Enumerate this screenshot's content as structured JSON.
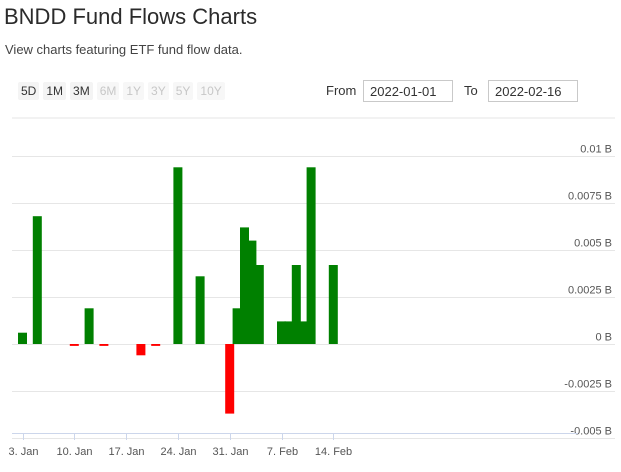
{
  "page": {
    "title": "BNDD Fund Flows Charts",
    "subtitle": "View charts featuring ETF fund flow data."
  },
  "range_selector": {
    "buttons": [
      {
        "label": "5D",
        "enabled": true
      },
      {
        "label": "1M",
        "enabled": true
      },
      {
        "label": "3M",
        "enabled": true
      },
      {
        "label": "6M",
        "enabled": false
      },
      {
        "label": "1Y",
        "enabled": false
      },
      {
        "label": "3Y",
        "enabled": false
      },
      {
        "label": "5Y",
        "enabled": false
      },
      {
        "label": "10Y",
        "enabled": false
      }
    ],
    "from_label": "From",
    "from_value": "2022-01-01",
    "to_label": "To",
    "to_value": "2022-02-16"
  },
  "colors": {
    "positive": "#008000",
    "negative": "#ff0000",
    "grid": "#e6e6e6"
  },
  "chart_data": {
    "type": "bar",
    "title": "",
    "xlabel": "",
    "ylabel": "",
    "ylim": [
      -0.005,
      0.01
    ],
    "grid": true,
    "y_ticks": [
      {
        "value": 0.01,
        "label": "0.01 B"
      },
      {
        "value": 0.0075,
        "label": "0.0075 B"
      },
      {
        "value": 0.005,
        "label": "0.005 B"
      },
      {
        "value": 0.0025,
        "label": "0.0025 B"
      },
      {
        "value": 0,
        "label": "0 B"
      },
      {
        "value": -0.0025,
        "label": "-0.0025 B"
      },
      {
        "value": -0.005,
        "label": "-0.005 B"
      }
    ],
    "x_ticks": [
      "3. Jan",
      "10. Jan",
      "17. Jan",
      "24. Jan",
      "31. Jan",
      "7. Feb",
      "14. Feb"
    ],
    "dates": [
      "2022-01-03",
      "2022-01-05",
      "2022-01-07",
      "2022-01-10",
      "2022-01-12",
      "2022-01-14",
      "2022-01-17",
      "2022-01-19",
      "2022-01-21",
      "2022-01-24",
      "2022-01-25",
      "2022-01-27",
      "2022-01-31",
      "2022-02-01",
      "2022-02-02",
      "2022-02-03",
      "2022-02-04",
      "2022-02-07",
      "2022-02-08",
      "2022-02-09",
      "2022-02-10",
      "2022-02-11",
      "2022-02-14",
      "2022-02-15",
      "2022-02-16"
    ],
    "values": [
      0.0006,
      0.0068,
      0,
      -0.0001,
      0.0019,
      -0.0001,
      0,
      -0.0006,
      -0.0001,
      0.0094,
      0,
      0.0036,
      -0.0037,
      0.0019,
      0.0062,
      0.0055,
      0.0042,
      0.0012,
      0.0012,
      0.0042,
      0.0012,
      0.0094,
      0.0042,
      0,
      0
    ]
  }
}
